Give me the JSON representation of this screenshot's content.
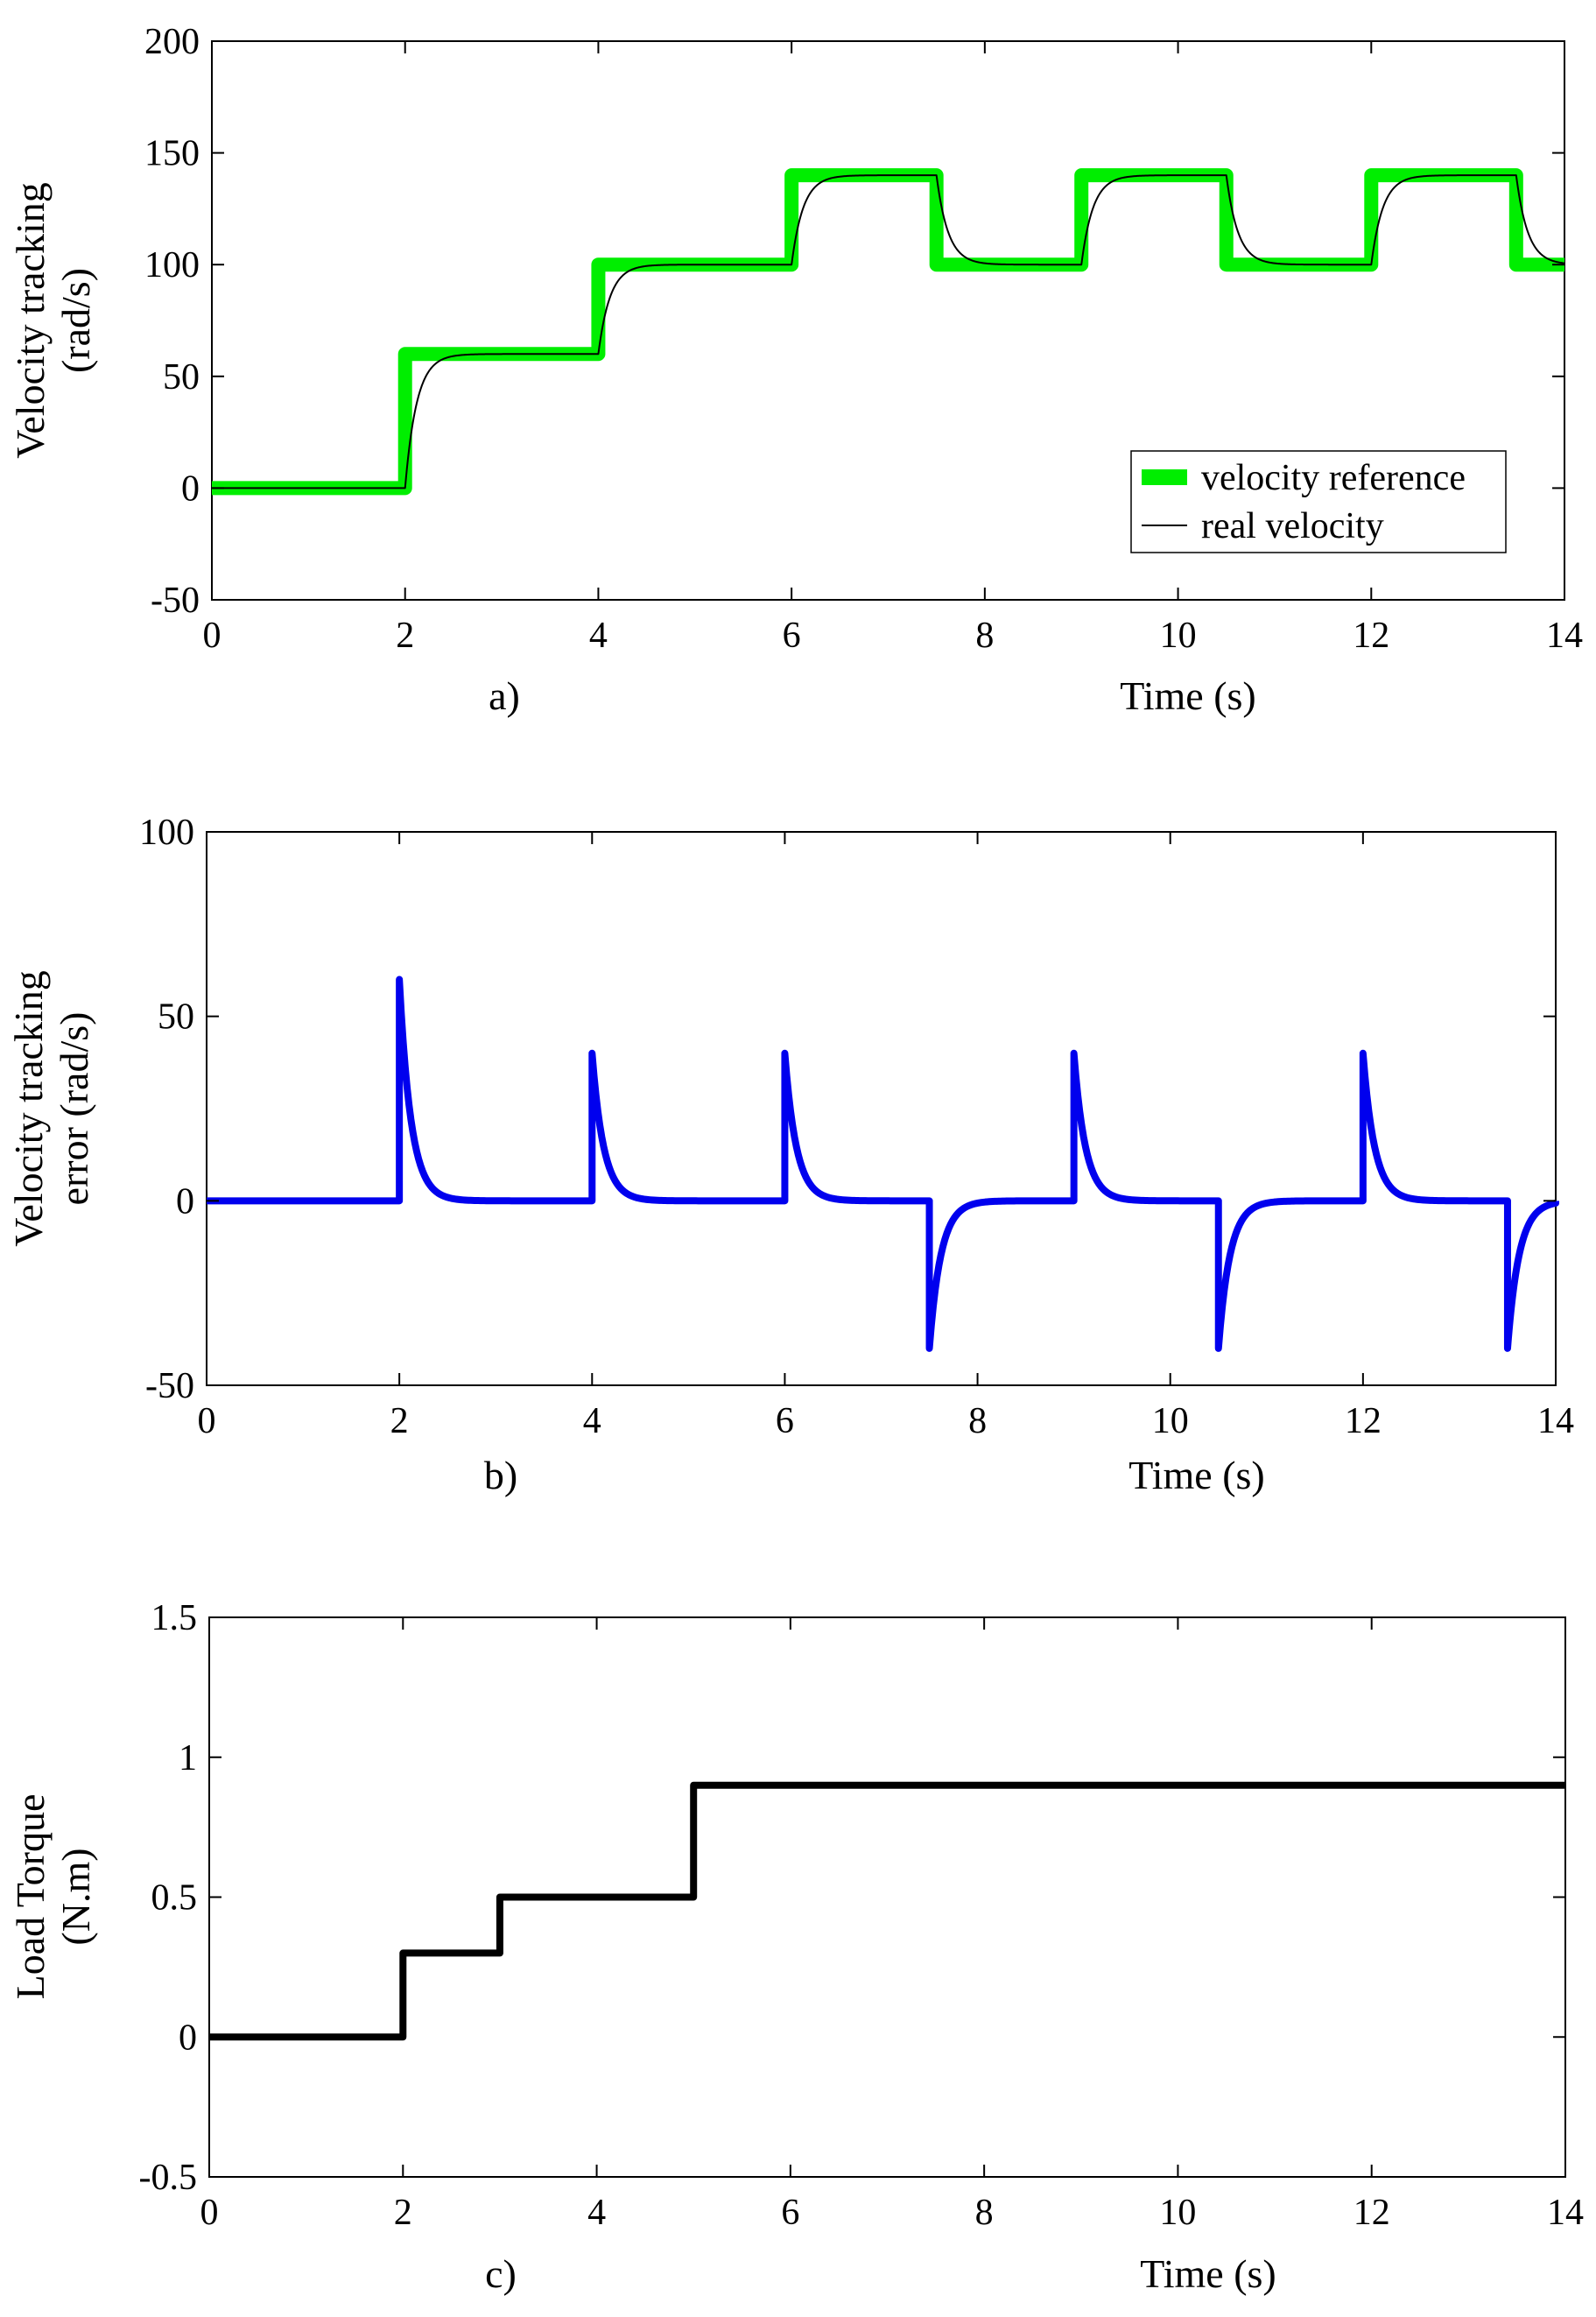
{
  "chart_data": [
    {
      "type": "line",
      "panel_label": "a)",
      "ylabel": [
        "Velocity tracking",
        "(rad/s)"
      ],
      "xlabel": "Time (s)",
      "xlim": [
        0,
        14
      ],
      "ylim": [
        -50,
        200
      ],
      "xticks": [
        0,
        2,
        4,
        6,
        8,
        10,
        12,
        14
      ],
      "yticks": [
        -50,
        0,
        50,
        100,
        150,
        200
      ],
      "legend": {
        "position": "bottom-right",
        "entries": [
          "velocity reference",
          "real velocity"
        ]
      },
      "series": [
        {
          "name": "velocity reference",
          "color": "#00ee00",
          "shape": "step",
          "x": [
            0,
            2,
            2,
            4,
            4,
            6,
            6,
            7.5,
            7.5,
            9,
            9,
            10.5,
            10.5,
            12,
            12,
            13.5,
            13.5,
            14
          ],
          "y": [
            0,
            0,
            60,
            60,
            100,
            100,
            140,
            140,
            100,
            100,
            140,
            140,
            100,
            100,
            140,
            140,
            100,
            100
          ]
        },
        {
          "name": "real velocity",
          "color": "#000000",
          "shape": "first_order_response",
          "tau": 0.12,
          "steps": {
            "t": [
              0,
              2,
              4,
              6,
              7.5,
              9,
              10.5,
              12,
              13.5
            ],
            "v": [
              0,
              60,
              100,
              140,
              100,
              140,
              100,
              140,
              100
            ]
          }
        }
      ]
    },
    {
      "type": "line",
      "panel_label": "b)",
      "ylabel": [
        "Velocity tracking",
        "error (rad/s)"
      ],
      "xlabel": "Time (s)",
      "xlim": [
        0,
        14
      ],
      "ylim": [
        -50,
        100
      ],
      "xticks": [
        0,
        2,
        4,
        6,
        8,
        10,
        12,
        14
      ],
      "yticks": [
        -50,
        0,
        50,
        100
      ],
      "series": [
        {
          "name": "velocity tracking error",
          "color": "#0000ee",
          "shape": "decaying_spikes",
          "tau": 0.12,
          "spikes": {
            "t": [
              2,
              4,
              6,
              7.5,
              9,
              10.5,
              12,
              13.5
            ],
            "peak": [
              60,
              40,
              40,
              -40,
              40,
              -40,
              40,
              -40
            ]
          }
        }
      ]
    },
    {
      "type": "line",
      "panel_label": "c)",
      "ylabel": [
        "Load Torque",
        "(N.m)"
      ],
      "xlabel": "Time (s)",
      "xlim": [
        0,
        14
      ],
      "ylim": [
        -0.5,
        1.5
      ],
      "xticks": [
        0,
        2,
        4,
        6,
        8,
        10,
        12,
        14
      ],
      "yticks": [
        -0.5,
        0,
        0.5,
        1,
        1.5
      ],
      "series": [
        {
          "name": "load torque",
          "color": "#000000",
          "shape": "step",
          "x": [
            0,
            2,
            2,
            3,
            3,
            5,
            5,
            14
          ],
          "y": [
            0,
            0,
            0.3,
            0.3,
            0.5,
            0.5,
            0.9,
            0.9
          ]
        }
      ]
    }
  ]
}
